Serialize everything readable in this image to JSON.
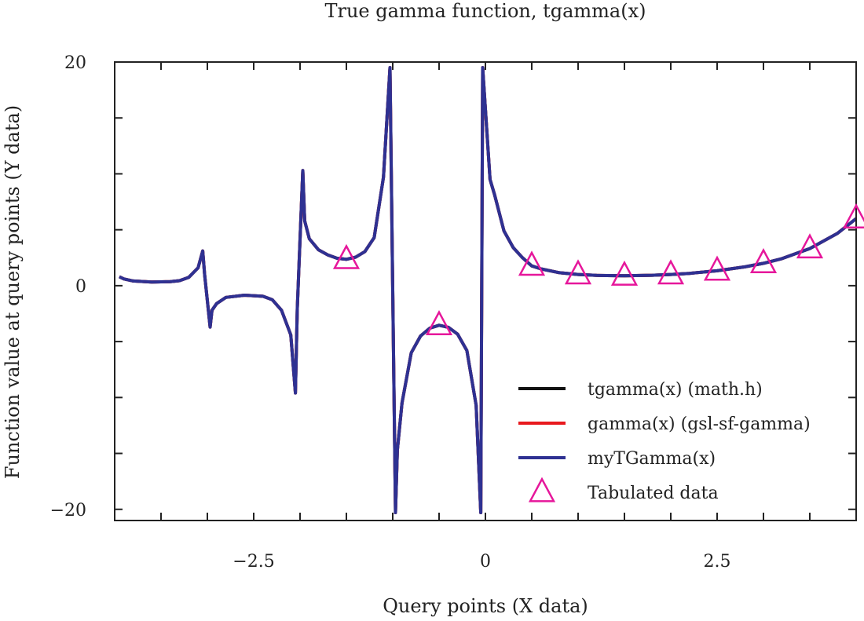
{
  "chart_data": {
    "type": "line",
    "title": "True gamma function, tgamma(x)",
    "xlabel": "Query points (X data)",
    "ylabel": "Function value at query points (Y data)",
    "xlim": [
      -4,
      4
    ],
    "ylim": [
      -21,
      20
    ],
    "x_ticks": [
      -2.5,
      0,
      2.5
    ],
    "x_tick_labels": [
      "−2.5",
      "0",
      "2.5"
    ],
    "y_ticks": [
      -20,
      0,
      20
    ],
    "y_tick_labels": [
      "−20",
      "0",
      "20"
    ],
    "legend_position": "bottom-right",
    "grid": false,
    "series": [
      {
        "name": "tgamma(x) (math.h)",
        "color": "#111111",
        "style": "line",
        "x": [
          -3.95,
          -3.9,
          -3.8,
          -3.6,
          -3.4,
          -3.3,
          -3.2,
          -3.1,
          -3.05,
          -3.03,
          -2.97,
          -2.95,
          -2.9,
          -2.8,
          -2.6,
          -2.4,
          -2.3,
          -2.2,
          -2.1,
          -2.05,
          -2.03,
          -1.97,
          -1.95,
          -1.9,
          -1.8,
          -1.7,
          -1.6,
          -1.5,
          -1.4,
          -1.3,
          -1.2,
          -1.1,
          -1.03,
          -0.97,
          -0.95,
          -0.9,
          -0.8,
          -0.7,
          -0.6,
          -0.5,
          -0.4,
          -0.3,
          -0.2,
          -0.1,
          -0.05,
          -0.03,
          0.05,
          0.1,
          0.2,
          0.3,
          0.4,
          0.5,
          0.6,
          0.8,
          1.0,
          1.2,
          1.5,
          1.8,
          2.0,
          2.2,
          2.5,
          2.8,
          3.0,
          3.2,
          3.5,
          3.8,
          4.0
        ],
        "values": [
          0.8,
          0.6,
          0.42,
          0.33,
          0.36,
          0.45,
          0.75,
          1.6,
          3.1,
          1.0,
          -3.7,
          -2.2,
          -1.6,
          -1.05,
          -0.85,
          -0.95,
          -1.25,
          -2.2,
          -4.4,
          -9.6,
          -2.0,
          10.3,
          5.8,
          4.2,
          3.2,
          2.75,
          2.45,
          2.36,
          2.55,
          3.05,
          4.3,
          9.7,
          19.5,
          -20.3,
          -14.7,
          -10.5,
          -6.0,
          -4.5,
          -3.8,
          -3.54,
          -3.72,
          -4.33,
          -5.8,
          -10.7,
          -20.3,
          19.5,
          9.5,
          8.1,
          4.9,
          3.4,
          2.5,
          1.77,
          1.5,
          1.16,
          1.0,
          0.92,
          0.89,
          0.93,
          1.0,
          1.1,
          1.33,
          1.68,
          2.0,
          2.42,
          3.32,
          4.69,
          6.0
        ]
      },
      {
        "name": "gamma(x) (gsl-sf-gamma)",
        "color": "#e8191e",
        "style": "line",
        "x": [
          -3.95,
          -3.9,
          -3.8,
          -3.6,
          -3.4,
          -3.3,
          -3.2,
          -3.1,
          -3.05,
          -3.03,
          -2.97,
          -2.95,
          -2.9,
          -2.8,
          -2.6,
          -2.4,
          -2.3,
          -2.2,
          -2.1,
          -2.05,
          -2.03,
          -1.97,
          -1.95,
          -1.9,
          -1.8,
          -1.7,
          -1.6,
          -1.5,
          -1.4,
          -1.3,
          -1.2,
          -1.1,
          -1.03,
          -0.97,
          -0.95,
          -0.9,
          -0.8,
          -0.7,
          -0.6,
          -0.5,
          -0.4,
          -0.3,
          -0.2,
          -0.1,
          -0.05,
          -0.03,
          0.05,
          0.1,
          0.2,
          0.3,
          0.4,
          0.5,
          0.6,
          0.8,
          1.0,
          1.2,
          1.5,
          1.8,
          2.0,
          2.2,
          2.5,
          2.8,
          3.0,
          3.2,
          3.5,
          3.8,
          4.0
        ],
        "values": [
          0.8,
          0.6,
          0.42,
          0.33,
          0.36,
          0.45,
          0.75,
          1.6,
          3.1,
          1.0,
          -3.7,
          -2.2,
          -1.6,
          -1.05,
          -0.85,
          -0.95,
          -1.25,
          -2.2,
          -4.4,
          -9.6,
          -2.0,
          10.3,
          5.8,
          4.2,
          3.2,
          2.75,
          2.45,
          2.36,
          2.55,
          3.05,
          4.3,
          9.7,
          19.5,
          -20.3,
          -14.7,
          -10.5,
          -6.0,
          -4.5,
          -3.8,
          -3.54,
          -3.72,
          -4.33,
          -5.8,
          -10.7,
          -20.3,
          19.5,
          9.5,
          8.1,
          4.9,
          3.4,
          2.5,
          1.77,
          1.5,
          1.16,
          1.0,
          0.92,
          0.89,
          0.93,
          1.0,
          1.1,
          1.33,
          1.68,
          2.0,
          2.42,
          3.32,
          4.69,
          6.0
        ]
      },
      {
        "name": "myTGamma(x)",
        "color": "#2e3192",
        "style": "line",
        "x": [
          -3.95,
          -3.9,
          -3.8,
          -3.6,
          -3.4,
          -3.3,
          -3.2,
          -3.1,
          -3.05,
          -3.03,
          -2.97,
          -2.95,
          -2.9,
          -2.8,
          -2.6,
          -2.4,
          -2.3,
          -2.2,
          -2.1,
          -2.05,
          -2.03,
          -1.97,
          -1.95,
          -1.9,
          -1.8,
          -1.7,
          -1.6,
          -1.5,
          -1.4,
          -1.3,
          -1.2,
          -1.1,
          -1.03,
          -0.97,
          -0.95,
          -0.9,
          -0.8,
          -0.7,
          -0.6,
          -0.5,
          -0.4,
          -0.3,
          -0.2,
          -0.1,
          -0.05,
          -0.03,
          0.05,
          0.1,
          0.2,
          0.3,
          0.4,
          0.5,
          0.6,
          0.8,
          1.0,
          1.2,
          1.5,
          1.8,
          2.0,
          2.2,
          2.5,
          2.8,
          3.0,
          3.2,
          3.5,
          3.8,
          4.0
        ],
        "values": [
          0.8,
          0.6,
          0.42,
          0.33,
          0.36,
          0.45,
          0.75,
          1.6,
          3.1,
          1.0,
          -3.7,
          -2.2,
          -1.6,
          -1.05,
          -0.85,
          -0.95,
          -1.25,
          -2.2,
          -4.4,
          -9.6,
          -2.0,
          10.3,
          5.8,
          4.2,
          3.2,
          2.75,
          2.45,
          2.36,
          2.55,
          3.05,
          4.3,
          9.7,
          19.5,
          -20.3,
          -14.7,
          -10.5,
          -6.0,
          -4.5,
          -3.8,
          -3.54,
          -3.72,
          -4.33,
          -5.8,
          -10.7,
          -20.3,
          19.5,
          9.5,
          8.1,
          4.9,
          3.4,
          2.5,
          1.77,
          1.5,
          1.16,
          1.0,
          0.92,
          0.89,
          0.93,
          1.0,
          1.1,
          1.33,
          1.68,
          2.0,
          2.42,
          3.32,
          4.69,
          6.0
        ]
      },
      {
        "name": "Tabulated data",
        "color": "#e6179b",
        "style": "triangle-markers",
        "x": [
          -1.5,
          -0.5,
          0.5,
          1.0,
          1.5,
          2.0,
          2.5,
          3.0,
          3.5,
          4.0
        ],
        "values": [
          2.363,
          -3.545,
          1.772,
          1.0,
          0.886,
          1.0,
          1.329,
          2.0,
          3.323,
          6.0
        ]
      }
    ]
  }
}
